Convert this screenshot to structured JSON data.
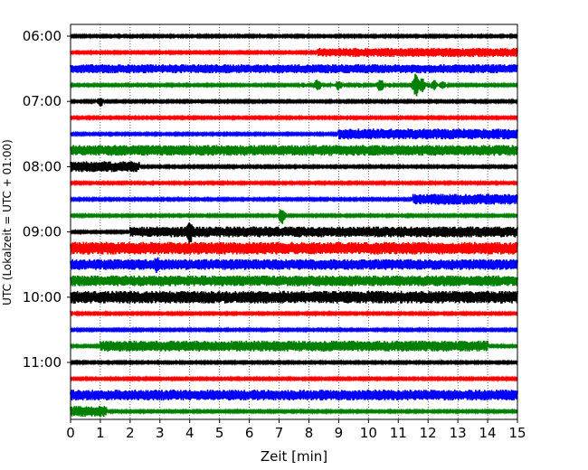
{
  "chart_data": {
    "type": "line",
    "title": "",
    "xlabel": "Zeit  [min]",
    "ylabel": "UTC (Lokalzeit = UTC + 01:00)",
    "xlim": [
      0,
      15
    ],
    "x_ticks": [
      "0",
      "1",
      "2",
      "3",
      "4",
      "5",
      "6",
      "7",
      "8",
      "9",
      "10",
      "11",
      "12",
      "13",
      "14",
      "15"
    ],
    "y_ticks": [
      "06:00",
      "07:00",
      "08:00",
      "09:00",
      "10:00",
      "11:00"
    ],
    "grid": "vertical dotted",
    "colors": [
      "#000000",
      "#ff0000",
      "#0000ff",
      "#008000"
    ],
    "series": [
      {
        "start": "06:00",
        "color": "#000000",
        "base": 1,
        "segments": []
      },
      {
        "start": "06:15",
        "color": "#ff0000",
        "base": 1,
        "segments": [
          [
            8.3,
            15.0,
            5
          ]
        ]
      },
      {
        "start": "06:30",
        "color": "#0000ff",
        "base": 5,
        "segments": [
          [
            7.5,
            15.0,
            1
          ]
        ]
      },
      {
        "start": "06:45",
        "color": "#008000",
        "base": 1,
        "bursts": [
          [
            7.8,
            3
          ],
          [
            8.3,
            7
          ],
          [
            8.8,
            2
          ],
          [
            9.0,
            6
          ],
          [
            9.7,
            3
          ],
          [
            10.4,
            8
          ],
          [
            10.7,
            3
          ],
          [
            11.6,
            15
          ],
          [
            11.8,
            8
          ],
          [
            12.2,
            6
          ],
          [
            12.5,
            5
          ]
        ]
      },
      {
        "start": "07:00",
        "color": "#000000",
        "base": 1,
        "bursts": [
          [
            1.0,
            6
          ]
        ]
      },
      {
        "start": "07:15",
        "color": "#ff0000",
        "base": 1,
        "segments": []
      },
      {
        "start": "07:30",
        "color": "#0000ff",
        "base": 1,
        "segments": [
          [
            9.0,
            15.0,
            6
          ]
        ]
      },
      {
        "start": "07:45",
        "color": "#008000",
        "base": 6,
        "segments": []
      },
      {
        "start": "08:00",
        "color": "#000000",
        "base": 1,
        "segments": [
          [
            0.0,
            2.3,
            6
          ]
        ]
      },
      {
        "start": "08:15",
        "color": "#ff0000",
        "base": 1,
        "segments": []
      },
      {
        "start": "08:30",
        "color": "#0000ff",
        "base": 1,
        "segments": [
          [
            11.5,
            15.0,
            6
          ]
        ]
      },
      {
        "start": "08:45",
        "color": "#008000",
        "base": 1,
        "bursts": [
          [
            7.1,
            10
          ]
        ]
      },
      {
        "start": "09:00",
        "color": "#000000",
        "base": 1,
        "segments": [
          [
            2.0,
            15.0,
            6
          ]
        ],
        "bursts": [
          [
            4.0,
            14
          ]
        ]
      },
      {
        "start": "09:15",
        "color": "#ff0000",
        "base": 7,
        "segments": []
      },
      {
        "start": "09:30",
        "color": "#0000ff",
        "base": 6,
        "bursts": [
          [
            2.9,
            10
          ]
        ]
      },
      {
        "start": "09:45",
        "color": "#008000",
        "base": 6,
        "segments": []
      },
      {
        "start": "10:00",
        "color": "#000000",
        "base": 7,
        "segments": []
      },
      {
        "start": "10:15",
        "color": "#ff0000",
        "base": 1,
        "bursts": [
          [
            0.0,
            4
          ]
        ]
      },
      {
        "start": "10:30",
        "color": "#0000ff",
        "base": 1,
        "segments": []
      },
      {
        "start": "10:45",
        "color": "#008000",
        "base": 1,
        "segments": [
          [
            1.0,
            14.0,
            6
          ]
        ]
      },
      {
        "start": "11:00",
        "color": "#000000",
        "base": 1,
        "segments": []
      },
      {
        "start": "11:15",
        "color": "#ff0000",
        "base": 1,
        "segments": []
      },
      {
        "start": "11:30",
        "color": "#0000ff",
        "base": 6,
        "segments": []
      },
      {
        "start": "11:45",
        "color": "#008000",
        "base": 1,
        "segments": [
          [
            0.0,
            1.2,
            6
          ]
        ]
      }
    ]
  }
}
